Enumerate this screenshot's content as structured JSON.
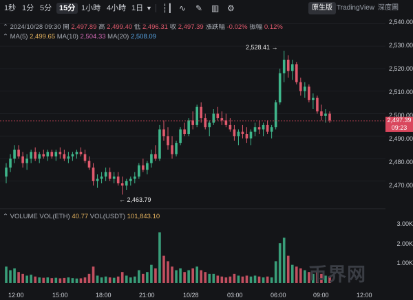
{
  "toolbar": {
    "timeframes": [
      "1秒",
      "1分",
      "5分",
      "15分",
      "1小時",
      "4小時",
      "1日"
    ],
    "active_timeframe": "15分",
    "views": [
      "原生版",
      "TradingView",
      "深度圖"
    ],
    "active_view": "原生版"
  },
  "ohlc_header": {
    "datetime": "2024/10/28 09:30",
    "open_label": "開",
    "open": "2,497.89",
    "high_label": "高",
    "high": "2,499.40",
    "low_label": "低",
    "low": "2,496.31",
    "close_label": "收",
    "close": "2,497.39",
    "change_label": "漲跌幅",
    "change": "-0.02%",
    "amp_label": "振幅",
    "amp": "0.12%"
  },
  "ma_header": {
    "ma5_label": "MA(5)",
    "ma5": "2,499.65",
    "ma10_label": "MA(10)",
    "ma10": "2,504.33",
    "ma20_label": "MA(20)",
    "ma20": "2,508.09"
  },
  "volume_header": {
    "label": "VOLUME",
    "eth_label": "VOL(ETH)",
    "eth": "40.77",
    "usdt_label": "VOL(USDT)",
    "usdt": "101,843.10"
  },
  "price_axis": [
    "2,540.00",
    "2,530.00",
    "2,520.00",
    "2,510.00",
    "2,500.00",
    "2,490.00",
    "2,480.00",
    "2,470.00"
  ],
  "volume_axis": [
    "3.00K",
    "2.00K",
    "1.00K"
  ],
  "time_axis": [
    "12:00",
    "15:00",
    "18:00",
    "21:00",
    "10/28",
    "03:00",
    "06:00",
    "09:00",
    "12:00"
  ],
  "current_price": "2,497.39",
  "countdown": "09:23",
  "high_marker": "2,528.41 →",
  "low_marker": "← 2,463.79",
  "watermark": "币界网",
  "colors": {
    "up": "#3fb68b",
    "down": "#e05a6d",
    "background": "#141518"
  },
  "chart_data": {
    "type": "candlestick",
    "ylim": [
      2462,
      2542
    ],
    "volume_ylim": [
      0,
      3500
    ],
    "candles": [
      [
        2472,
        2478,
        2469,
        2476,
        900
      ],
      [
        2476,
        2482,
        2474,
        2480,
        700
      ],
      [
        2480,
        2486,
        2478,
        2484,
        800
      ],
      [
        2484,
        2486,
        2480,
        2481,
        600
      ],
      [
        2481,
        2483,
        2476,
        2478,
        500
      ],
      [
        2478,
        2482,
        2475,
        2480,
        400
      ],
      [
        2480,
        2484,
        2478,
        2483,
        450
      ],
      [
        2483,
        2485,
        2479,
        2480,
        350
      ],
      [
        2480,
        2483,
        2478,
        2482,
        300
      ],
      [
        2482,
        2484,
        2480,
        2481,
        280
      ],
      [
        2481,
        2484,
        2479,
        2483,
        300
      ],
      [
        2483,
        2484,
        2480,
        2481,
        260
      ],
      [
        2481,
        2484,
        2479,
        2483,
        280
      ],
      [
        2483,
        2485,
        2480,
        2482,
        250
      ],
      [
        2482,
        2484,
        2479,
        2480,
        270
      ],
      [
        2480,
        2483,
        2478,
        2481,
        300
      ],
      [
        2481,
        2483,
        2479,
        2482,
        260
      ],
      [
        2482,
        2484,
        2480,
        2483,
        240
      ],
      [
        2483,
        2485,
        2481,
        2482,
        250
      ],
      [
        2482,
        2484,
        2478,
        2479,
        300
      ],
      [
        2479,
        2481,
        2475,
        2476,
        500
      ],
      [
        2476,
        2478,
        2468,
        2470,
        900
      ],
      [
        2470,
        2473,
        2467,
        2471,
        400
      ],
      [
        2471,
        2474,
        2469,
        2472,
        300
      ],
      [
        2472,
        2476,
        2470,
        2474,
        350
      ],
      [
        2474,
        2476,
        2470,
        2471,
        300
      ],
      [
        2471,
        2474,
        2469,
        2472,
        280
      ],
      [
        2472,
        2474,
        2468,
        2469,
        350
      ],
      [
        2469,
        2472,
        2464,
        2468,
        600
      ],
      [
        2468,
        2471,
        2466,
        2470,
        400
      ],
      [
        2470,
        2472,
        2468,
        2471,
        300
      ],
      [
        2471,
        2474,
        2469,
        2472,
        350
      ],
      [
        2472,
        2478,
        2471,
        2477,
        700
      ],
      [
        2477,
        2480,
        2474,
        2475,
        500
      ],
      [
        2475,
        2479,
        2473,
        2478,
        600
      ],
      [
        2478,
        2484,
        2476,
        2482,
        1000
      ],
      [
        2482,
        2486,
        2479,
        2480,
        800
      ],
      [
        2480,
        2495,
        2479,
        2493,
        2800
      ],
      [
        2493,
        2497,
        2488,
        2490,
        1500
      ],
      [
        2490,
        2494,
        2484,
        2486,
        1200
      ],
      [
        2486,
        2490,
        2480,
        2482,
        900
      ],
      [
        2482,
        2488,
        2481,
        2487,
        700
      ],
      [
        2487,
        2494,
        2486,
        2493,
        800
      ],
      [
        2493,
        2496,
        2490,
        2491,
        600
      ],
      [
        2491,
        2498,
        2490,
        2497,
        700
      ],
      [
        2497,
        2501,
        2493,
        2495,
        800
      ],
      [
        2495,
        2504,
        2494,
        2503,
        900
      ],
      [
        2503,
        2505,
        2496,
        2498,
        700
      ],
      [
        2498,
        2500,
        2493,
        2494,
        600
      ],
      [
        2494,
        2497,
        2490,
        2496,
        500
      ],
      [
        2496,
        2502,
        2495,
        2500,
        500
      ],
      [
        2500,
        2503,
        2497,
        2498,
        400
      ],
      [
        2498,
        2501,
        2495,
        2497,
        350
      ],
      [
        2497,
        2500,
        2494,
        2495,
        300
      ],
      [
        2495,
        2498,
        2492,
        2493,
        350
      ],
      [
        2493,
        2495,
        2488,
        2490,
        500
      ],
      [
        2490,
        2493,
        2486,
        2492,
        400
      ],
      [
        2492,
        2495,
        2489,
        2491,
        350
      ],
      [
        2491,
        2494,
        2487,
        2489,
        400
      ],
      [
        2489,
        2493,
        2486,
        2492,
        350
      ],
      [
        2492,
        2496,
        2490,
        2494,
        400
      ],
      [
        2494,
        2497,
        2491,
        2493,
        350
      ],
      [
        2493,
        2496,
        2490,
        2495,
        300
      ],
      [
        2495,
        2497,
        2491,
        2492,
        350
      ],
      [
        2492,
        2495,
        2489,
        2494,
        300
      ],
      [
        2494,
        2506,
        2493,
        2505,
        1200
      ],
      [
        2505,
        2520,
        2504,
        2518,
        2200
      ],
      [
        2518,
        2528,
        2514,
        2524,
        2500
      ],
      [
        2524,
        2526,
        2516,
        2519,
        1500
      ],
      [
        2519,
        2524,
        2515,
        2522,
        1000
      ],
      [
        2522,
        2523,
        2513,
        2514,
        900
      ],
      [
        2514,
        2516,
        2508,
        2510,
        800
      ],
      [
        2510,
        2514,
        2507,
        2512,
        700
      ],
      [
        2512,
        2513,
        2505,
        2506,
        600
      ],
      [
        2506,
        2509,
        2502,
        2507,
        500
      ],
      [
        2507,
        2508,
        2500,
        2501,
        600
      ],
      [
        2501,
        2504,
        2497,
        2499,
        500
      ],
      [
        2499,
        2502,
        2496,
        2500,
        400
      ],
      [
        2500,
        2501,
        2496,
        2497,
        350
      ]
    ],
    "ma": [
      {
        "name": "MA(5)",
        "value": "2,499.65"
      },
      {
        "name": "MA(10)",
        "value": "2,504.33"
      },
      {
        "name": "MA(20)",
        "value": "2,508.09"
      }
    ]
  }
}
